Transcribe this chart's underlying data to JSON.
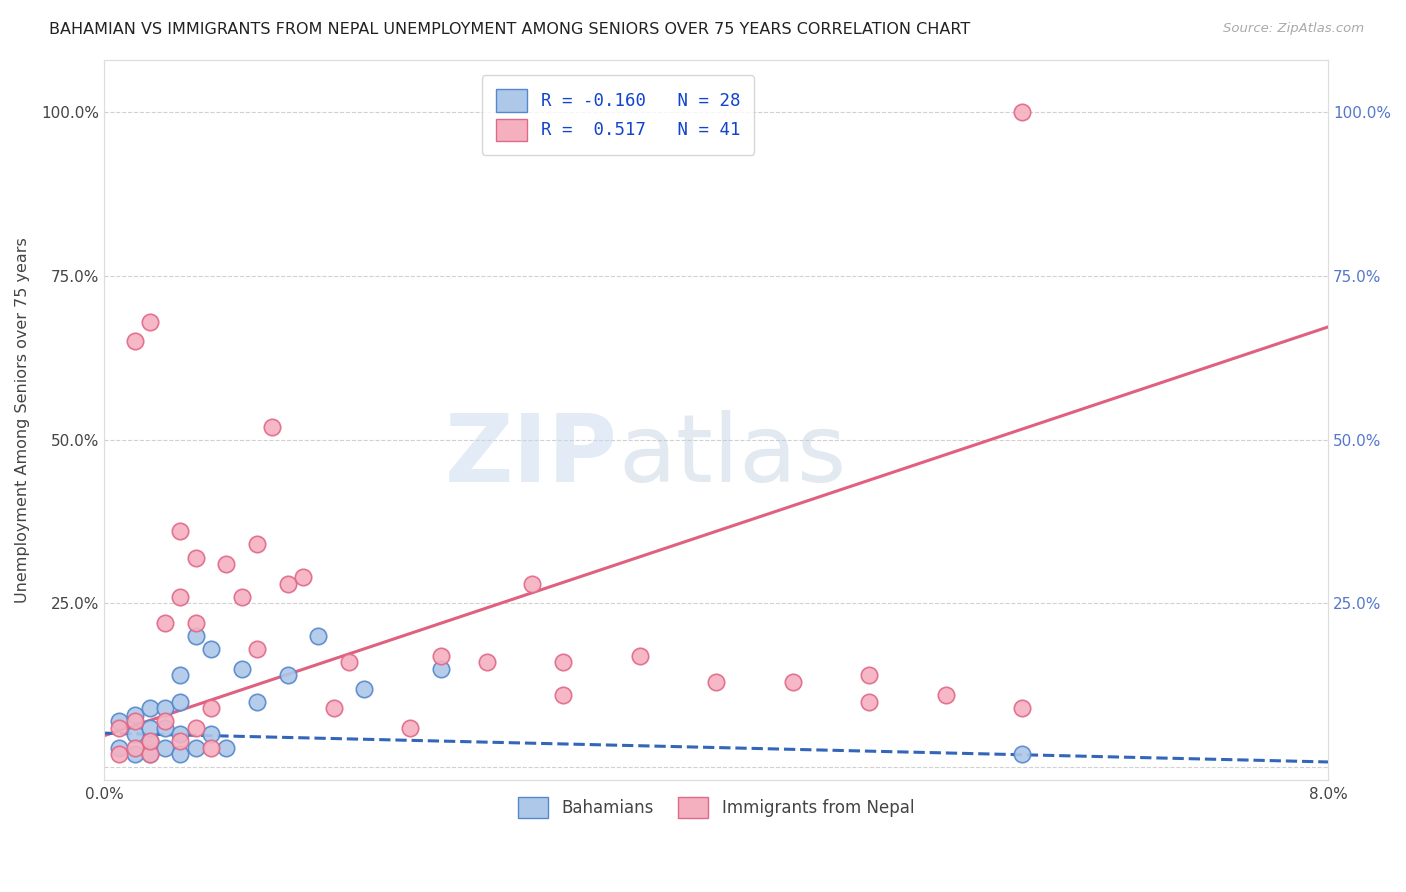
{
  "title": "BAHAMIAN VS IMMIGRANTS FROM NEPAL UNEMPLOYMENT AMONG SENIORS OVER 75 YEARS CORRELATION CHART",
  "source": "Source: ZipAtlas.com",
  "xlabel": "",
  "ylabel": "Unemployment Among Seniors over 75 years",
  "xlim": [
    0.0,
    0.08
  ],
  "ylim": [
    -0.02,
    1.08
  ],
  "xticks": [
    0.0,
    0.02,
    0.04,
    0.06,
    0.08
  ],
  "xtick_labels": [
    "0.0%",
    "",
    "",
    "",
    "8.0%"
  ],
  "yticks_left": [
    0.0,
    0.25,
    0.5,
    0.75,
    1.0
  ],
  "ytick_labels_left": [
    "",
    "25.0%",
    "50.0%",
    "75.0%",
    "100.0%"
  ],
  "yticks_right": [
    0.25,
    0.5,
    0.75,
    1.0
  ],
  "ytick_labels_right": [
    "25.0%",
    "50.0%",
    "75.0%",
    "100.0%"
  ],
  "bahamian_color": "#adc8e8",
  "bahamian_edge_color": "#5588cc",
  "nepal_color": "#f5b0c0",
  "nepal_edge_color": "#e06888",
  "trend_bahamian_color": "#3366bb",
  "trend_nepal_color": "#e06080",
  "R_bahamian": -0.16,
  "N_bahamian": 28,
  "R_nepal": 0.517,
  "N_nepal": 41,
  "legend_label_bahamian": "Bahamians",
  "legend_label_nepal": "Immigrants from Nepal",
  "watermark_zip": "ZIP",
  "watermark_atlas": "atlas",
  "nepal_trend_intercept": 0.048,
  "nepal_trend_slope": 7.8,
  "bahamian_trend_intercept": 0.052,
  "bahamian_trend_slope": -0.55,
  "bahamian_x": [
    0.001,
    0.001,
    0.002,
    0.002,
    0.002,
    0.003,
    0.003,
    0.003,
    0.003,
    0.004,
    0.004,
    0.004,
    0.005,
    0.005,
    0.005,
    0.005,
    0.006,
    0.006,
    0.007,
    0.007,
    0.008,
    0.009,
    0.01,
    0.012,
    0.014,
    0.017,
    0.022,
    0.06
  ],
  "bahamian_y": [
    0.03,
    0.07,
    0.02,
    0.05,
    0.08,
    0.02,
    0.04,
    0.06,
    0.09,
    0.03,
    0.06,
    0.09,
    0.02,
    0.05,
    0.1,
    0.14,
    0.03,
    0.2,
    0.05,
    0.18,
    0.03,
    0.15,
    0.1,
    0.14,
    0.2,
    0.12,
    0.15,
    0.02
  ],
  "nepal_x": [
    0.001,
    0.001,
    0.002,
    0.002,
    0.002,
    0.003,
    0.003,
    0.003,
    0.004,
    0.004,
    0.005,
    0.005,
    0.005,
    0.006,
    0.006,
    0.006,
    0.007,
    0.007,
    0.008,
    0.009,
    0.01,
    0.01,
    0.011,
    0.012,
    0.013,
    0.015,
    0.016,
    0.02,
    0.022,
    0.025,
    0.028,
    0.03,
    0.035,
    0.04,
    0.045,
    0.05,
    0.055,
    0.06,
    0.03,
    0.05,
    0.06
  ],
  "nepal_y": [
    0.02,
    0.06,
    0.03,
    0.07,
    0.65,
    0.02,
    0.04,
    0.68,
    0.07,
    0.22,
    0.04,
    0.26,
    0.36,
    0.06,
    0.22,
    0.32,
    0.03,
    0.09,
    0.31,
    0.26,
    0.18,
    0.34,
    0.52,
    0.28,
    0.29,
    0.09,
    0.16,
    0.06,
    0.17,
    0.16,
    0.28,
    0.11,
    0.17,
    0.13,
    0.13,
    0.14,
    0.11,
    1.0,
    0.16,
    0.1,
    0.09
  ]
}
